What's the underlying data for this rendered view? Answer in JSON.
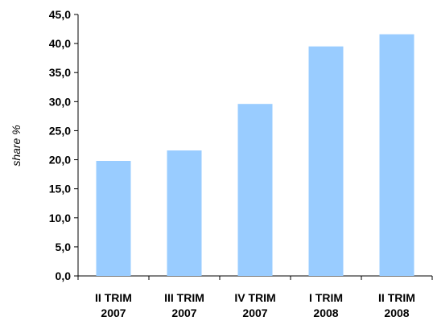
{
  "chart_data": {
    "type": "bar",
    "title": "",
    "xlabel": "",
    "ylabel": "share %",
    "ylim": [
      0,
      45
    ],
    "y_ticks": [
      "0,0",
      "5,0",
      "10,0",
      "15,0",
      "20,0",
      "25,0",
      "30,0",
      "35,0",
      "40,0",
      "45,0"
    ],
    "y_tick_values": [
      0,
      5,
      10,
      15,
      20,
      25,
      30,
      35,
      40,
      45
    ],
    "categories": [
      [
        "II TRIM",
        "2007"
      ],
      [
        "III TRIM",
        "2007"
      ],
      [
        "IV TRIM",
        "2007"
      ],
      [
        "I TRIM",
        "2008"
      ],
      [
        "II TRIM",
        "2008"
      ]
    ],
    "values": [
      19.8,
      21.6,
      29.6,
      39.5,
      41.6
    ],
    "grid": false,
    "legend": "none",
    "bar_color": "#99CCFF",
    "axis_color": "#000000"
  }
}
